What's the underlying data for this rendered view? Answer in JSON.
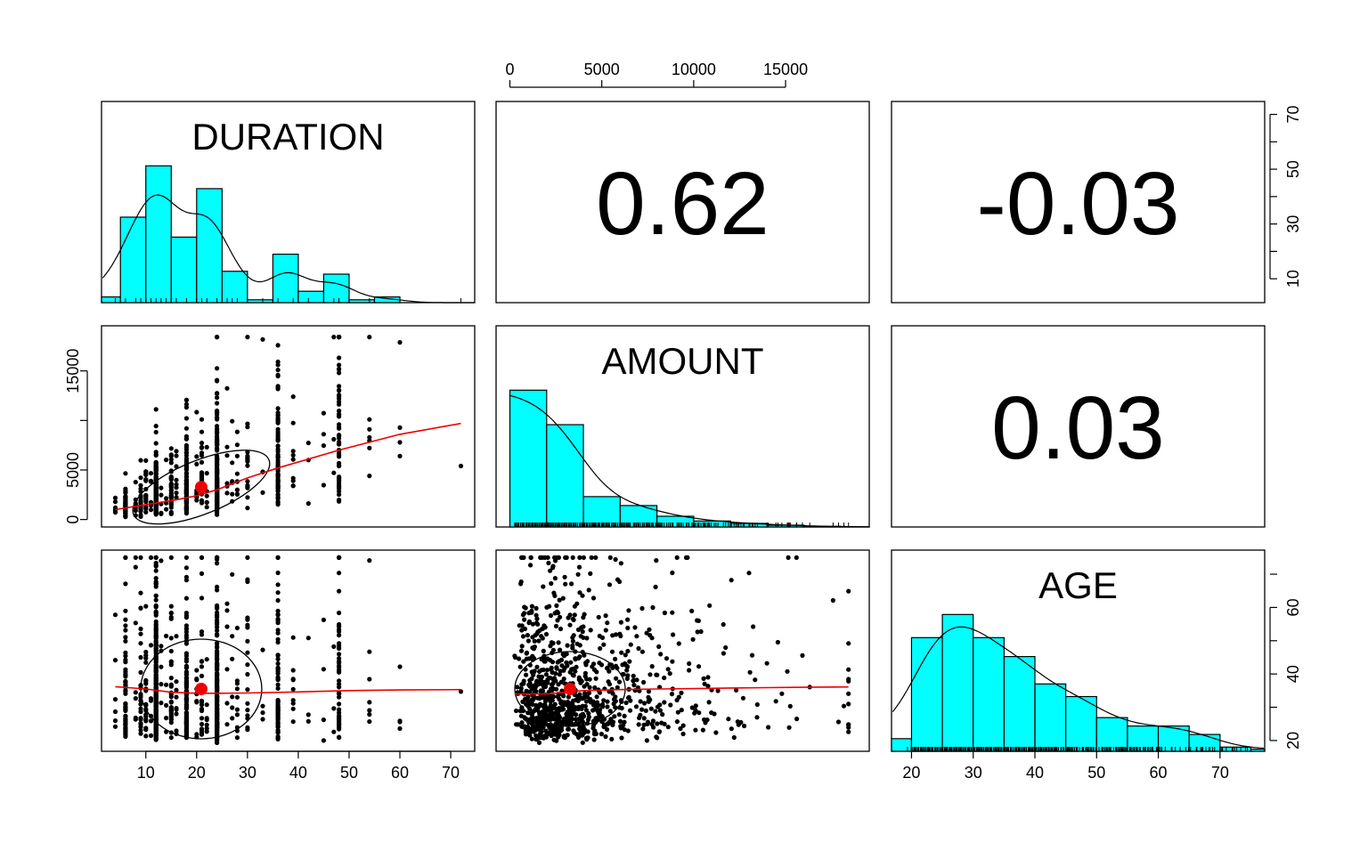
{
  "chart_data": {
    "type": "pairs",
    "variables": [
      "DURATION",
      "AMOUNT",
      "AGE"
    ],
    "ranges": {
      "DURATION": [
        4,
        72
      ],
      "AMOUNT": [
        250,
        18424
      ],
      "AGE": [
        19,
        75
      ]
    },
    "correlations": [
      {
        "row": 0,
        "col": 1,
        "value": "0.62"
      },
      {
        "row": 0,
        "col": 2,
        "value": "-0.03"
      },
      {
        "row": 1,
        "col": 2,
        "value": "0.03"
      }
    ],
    "histograms": {
      "DURATION": {
        "breaks": [
          0,
          5,
          10,
          15,
          20,
          25,
          30,
          35,
          40,
          45,
          50,
          55,
          60,
          65,
          70,
          75
        ],
        "density": [
          0.002,
          0.03,
          0.048,
          0.023,
          0.04,
          0.011,
          0.001,
          0.017,
          0.004,
          0.01,
          0.001,
          0.002,
          0.0,
          0.0,
          0.0
        ]
      },
      "AMOUNT": {
        "breaks": [
          0,
          2000,
          4000,
          6000,
          8000,
          10000,
          12000,
          14000,
          16000,
          18000,
          20000
        ],
        "density": [
          0.00023,
          0.000172,
          5.1e-05,
          3.6e-05,
          1.8e-05,
          1e-05,
          6e-06,
          3e-06,
          1e-06,
          2e-07
        ]
      },
      "AGE": {
        "breaks": [
          15,
          20,
          25,
          30,
          35,
          40,
          45,
          50,
          55,
          60,
          65,
          70,
          75,
          80
        ],
        "density": [
          0.006,
          0.054,
          0.065,
          0.054,
          0.045,
          0.032,
          0.026,
          0.016,
          0.012,
          0.012,
          0.008,
          0.002,
          0.001
        ]
      }
    },
    "means": {
      "DURATION": 20.9,
      "AMOUNT": 3271,
      "AGE": 35.5
    },
    "lowess": {
      "AMOUNT_vs_DURATION": [
        [
          4,
          1000
        ],
        [
          10,
          1500
        ],
        [
          16,
          2000
        ],
        [
          20,
          2400
        ],
        [
          24,
          3000
        ],
        [
          30,
          4200
        ],
        [
          36,
          5200
        ],
        [
          48,
          7000
        ],
        [
          60,
          8600
        ],
        [
          72,
          9700
        ]
      ],
      "AGE_vs_DURATION": [
        [
          4,
          36.2
        ],
        [
          10,
          35.5
        ],
        [
          15,
          34.5
        ],
        [
          20,
          34.2
        ],
        [
          25,
          34.2
        ],
        [
          30,
          34.3
        ],
        [
          40,
          34.6
        ],
        [
          50,
          35.0
        ],
        [
          60,
          35.2
        ],
        [
          72,
          35.3
        ]
      ],
      "AGE_vs_AMOUNT": [
        [
          250,
          34.0
        ],
        [
          2000,
          34.0
        ],
        [
          4000,
          35.0
        ],
        [
          6000,
          35.3
        ],
        [
          8000,
          35.5
        ],
        [
          10000,
          35.6
        ],
        [
          12000,
          35.8
        ],
        [
          14000,
          35.9
        ],
        [
          16000,
          36.0
        ],
        [
          18424,
          36.1
        ]
      ]
    },
    "axes": {
      "bottom_DURATION_ticks": [
        "10",
        "20",
        "30",
        "40",
        "50",
        "60",
        "70"
      ],
      "top_AMOUNT_ticks": [
        "0",
        "5000",
        "10000",
        "15000"
      ],
      "left_AMOUNT_ticks": [
        "0",
        "5000",
        "15000"
      ],
      "right_DURATION_ticks": [
        "10",
        "30",
        "50",
        "70"
      ],
      "right_AGE_ticks": [
        "20",
        "40",
        "60"
      ],
      "bottom_AGE_ticks": [
        "20",
        "30",
        "40",
        "50",
        "60",
        "70"
      ]
    }
  }
}
